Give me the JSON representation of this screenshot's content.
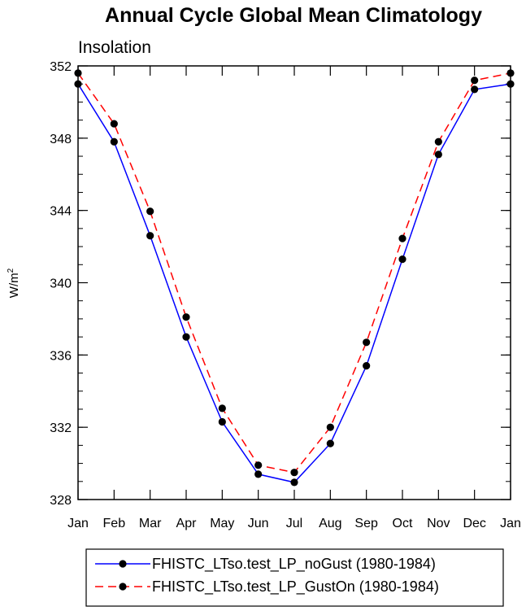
{
  "chart_data": {
    "type": "line",
    "title": "Annual Cycle Global Mean Climatology",
    "subtitle": "Insolation",
    "ylabel": "W/m",
    "ylabel_sup": "2",
    "xlabel": "",
    "categories": [
      "Jan",
      "Feb",
      "Mar",
      "Apr",
      "May",
      "Jun",
      "Jul",
      "Aug",
      "Sep",
      "Oct",
      "Nov",
      "Dec",
      "Jan"
    ],
    "ylim": [
      328,
      352
    ],
    "yticks": [
      328,
      332,
      336,
      340,
      344,
      348,
      352
    ],
    "yminor_step": 1,
    "grid": false,
    "legend_position": "bottom",
    "series": [
      {
        "name": "FHISTC_LTso.test_LP_noGust (1980-1984)",
        "color": "#0000ff",
        "dash": "solid",
        "values": [
          351.0,
          347.8,
          342.6,
          337.0,
          332.3,
          329.4,
          328.95,
          331.1,
          335.4,
          341.3,
          347.1,
          350.7,
          351.0
        ]
      },
      {
        "name": "FHISTC_LTso.test_LP_GustOn (1980-1984)",
        "color": "#ff0000",
        "dash": "dashed",
        "values": [
          351.6,
          348.8,
          343.95,
          338.1,
          333.05,
          329.9,
          329.5,
          332.0,
          336.7,
          342.45,
          347.8,
          351.2,
          351.6
        ]
      }
    ]
  }
}
